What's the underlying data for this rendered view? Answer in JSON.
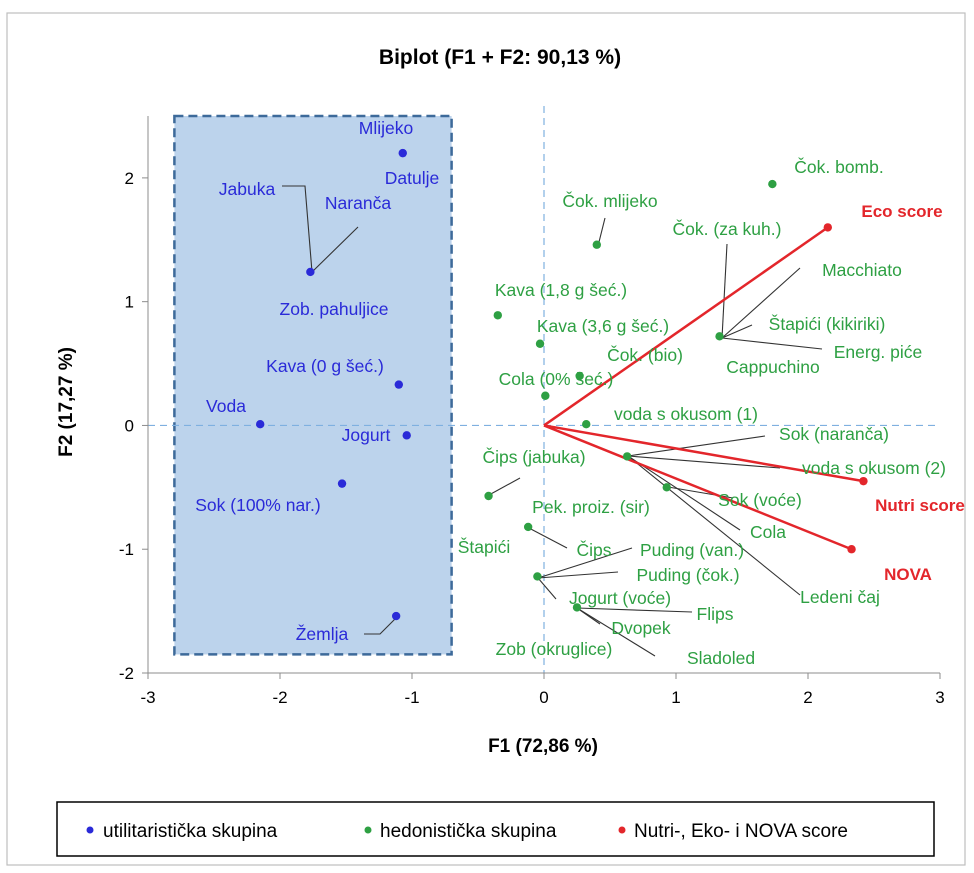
{
  "chart_data": {
    "type": "scatter",
    "title": "Biplot (F1 + F2: 90,13 %)",
    "xlabel": "F1 (72,86 %)",
    "ylabel": "F2 (17,27 %)",
    "xlim": [
      -3,
      3
    ],
    "ylim": [
      -2,
      2.5
    ],
    "x_ticks": [
      "-3",
      "-2",
      "-1",
      "0",
      "1",
      "2",
      "3"
    ],
    "y_ticks": [
      "-2",
      "-1",
      "0",
      "1",
      "2"
    ],
    "colors": {
      "utilitarian": "#2a2ad8",
      "hedonic": "#2ea043",
      "score": "#e3262b",
      "band_fill": "#bcd3ec",
      "band_stroke": "#3d6a9a"
    },
    "utilitarian_band": {
      "x": [
        -2.8,
        -0.7
      ],
      "y": [
        -1.85,
        2.5
      ]
    },
    "legend": {
      "position": "bottom",
      "entries": [
        {
          "key": "utilitarian",
          "label": "utilitaristička skupina"
        },
        {
          "key": "hedonic",
          "label": "hedonistička skupina"
        },
        {
          "key": "score",
          "label": "Nutri-, Eko- i NOVA score"
        }
      ]
    },
    "series": [
      {
        "key": "utilitarian",
        "points": [
          {
            "label": "Mlijeko",
            "x": -1.07,
            "y": 2.2
          },
          {
            "label": "Datulje",
            "x": -1.07,
            "y": 2.2
          },
          {
            "label": "Jabuka",
            "x": -1.77,
            "y": 1.24
          },
          {
            "label": "Naranča",
            "x": -1.77,
            "y": 1.24
          },
          {
            "label": "Zob. pahuljice",
            "x": -1.77,
            "y": 1.24
          },
          {
            "label": "Kava (0 g šeć.)",
            "x": -1.1,
            "y": 0.33
          },
          {
            "label": "Voda",
            "x": -2.15,
            "y": 0.01
          },
          {
            "label": "Jogurt",
            "x": -1.04,
            "y": -0.08
          },
          {
            "label": "Sok (100% nar.)",
            "x": -1.53,
            "y": -0.47
          },
          {
            "label": "Žemlja",
            "x": -1.12,
            "y": -1.54
          }
        ]
      },
      {
        "key": "hedonic",
        "points": [
          {
            "label": "Čok. bomb.",
            "x": 1.73,
            "y": 1.95
          },
          {
            "label": "Čok. mlijeko",
            "x": 0.4,
            "y": 1.46
          },
          {
            "label": "Čok. (za kuh.)",
            "x": 1.33,
            "y": 0.72
          },
          {
            "label": "Macchiato",
            "x": 1.33,
            "y": 0.72
          },
          {
            "label": "Štapići (kikiriki)",
            "x": 1.33,
            "y": 0.72
          },
          {
            "label": "Energ. piće",
            "x": 1.33,
            "y": 0.72
          },
          {
            "label": "Cappuchino",
            "x": 1.33,
            "y": 0.72
          },
          {
            "label": "Kava (1,8 g šeć.)",
            "x": -0.35,
            "y": 0.89
          },
          {
            "label": "Kava (3,6 g šeć.)",
            "x": -0.03,
            "y": 0.66
          },
          {
            "label": "Čok. (bio)",
            "x": 0.27,
            "y": 0.4
          },
          {
            "label": "Cola (0% šeć.)",
            "x": 0.01,
            "y": 0.24
          },
          {
            "label": "voda s okusom (1)",
            "x": 0.32,
            "y": 0.01
          },
          {
            "label": "Sok (naranča)",
            "x": 0.63,
            "y": -0.25
          },
          {
            "label": "voda s okusom (2)",
            "x": 0.63,
            "y": -0.25
          },
          {
            "label": "Pek. proiz. (sir)",
            "x": 0.63,
            "y": -0.25
          },
          {
            "label": "Cola",
            "x": 0.63,
            "y": -0.25
          },
          {
            "label": "Ledeni čaj",
            "x": 0.63,
            "y": -0.25
          },
          {
            "label": "Sok (voće)",
            "x": 0.93,
            "y": -0.5
          },
          {
            "label": "Čips (jabuka)",
            "x": -0.42,
            "y": -0.57
          },
          {
            "label": "Štapići",
            "x": -0.12,
            "y": -0.82
          },
          {
            "label": "Čips",
            "x": -0.12,
            "y": -0.82
          },
          {
            "label": "Puding (van.)",
            "x": -0.05,
            "y": -1.22
          },
          {
            "label": "Puding (čok.)",
            "x": -0.05,
            "y": -1.22
          },
          {
            "label": "Jogurt (voće)",
            "x": -0.05,
            "y": -1.22
          },
          {
            "label": "Zob (okruglice)",
            "x": -0.05,
            "y": -1.22
          },
          {
            "label": "Flips",
            "x": 0.25,
            "y": -1.47
          },
          {
            "label": "Dvopek",
            "x": 0.25,
            "y": -1.47
          },
          {
            "label": "Sladoled",
            "x": 0.25,
            "y": -1.47
          }
        ]
      },
      {
        "key": "score",
        "points": [
          {
            "label": "Eco score",
            "x": 2.15,
            "y": 1.6
          },
          {
            "label": "Nutri score",
            "x": 2.42,
            "y": -0.45
          },
          {
            "label": "NOVA",
            "x": 2.33,
            "y": -1.0
          }
        ]
      }
    ]
  }
}
